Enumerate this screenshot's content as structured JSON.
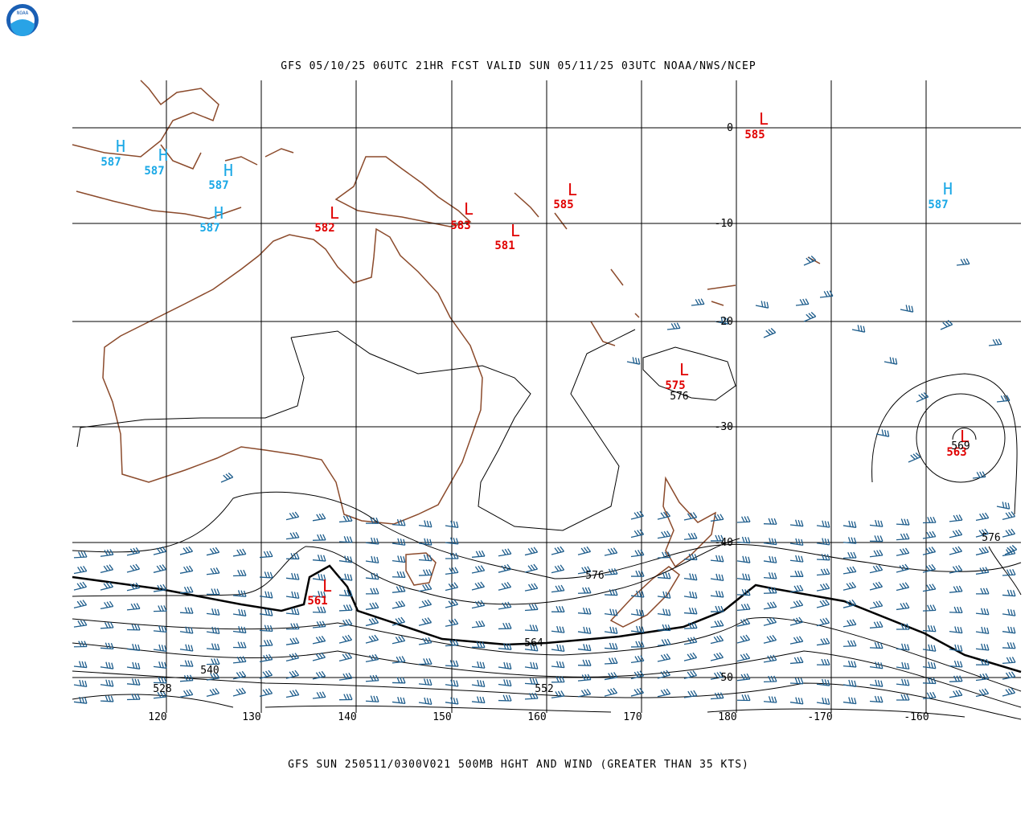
{
  "logo": "NOAA",
  "header": {
    "title": "GFS 05/10/25 06UTC 21HR FCST VALID SUN 05/11/25 03UTC NOAA/NWS/NCEP"
  },
  "footer": {
    "caption": "GFS SUN 250511/0300V021 500MB HGHT AND WIND (GREATER THAN 35 KTS)"
  },
  "grid": {
    "lon_labels": [
      "120",
      "130",
      "140",
      "150",
      "160",
      "170",
      "180",
      "-170",
      "-160"
    ],
    "lat_labels": [
      "0",
      "-10",
      "-20",
      "-30",
      "-40",
      "-50"
    ]
  },
  "centers": [
    {
      "symbol": "H",
      "value": "587"
    },
    {
      "symbol": "H",
      "value": "587"
    },
    {
      "symbol": "H",
      "value": "587"
    },
    {
      "symbol": "H",
      "value": "587"
    },
    {
      "symbol": "L",
      "value": "582"
    },
    {
      "symbol": "L",
      "value": "583"
    },
    {
      "symbol": "L",
      "value": "581"
    },
    {
      "symbol": "L",
      "value": "585"
    },
    {
      "symbol": "L",
      "value": "585"
    },
    {
      "symbol": "H",
      "value": "587"
    },
    {
      "symbol": "L",
      "value": "575"
    },
    {
      "symbol": "L",
      "value": "563"
    },
    {
      "symbol": "L",
      "value": "561"
    }
  ],
  "contour_labels": [
    "576",
    "569",
    "576",
    "576",
    "564",
    "540",
    "528",
    "552"
  ]
}
